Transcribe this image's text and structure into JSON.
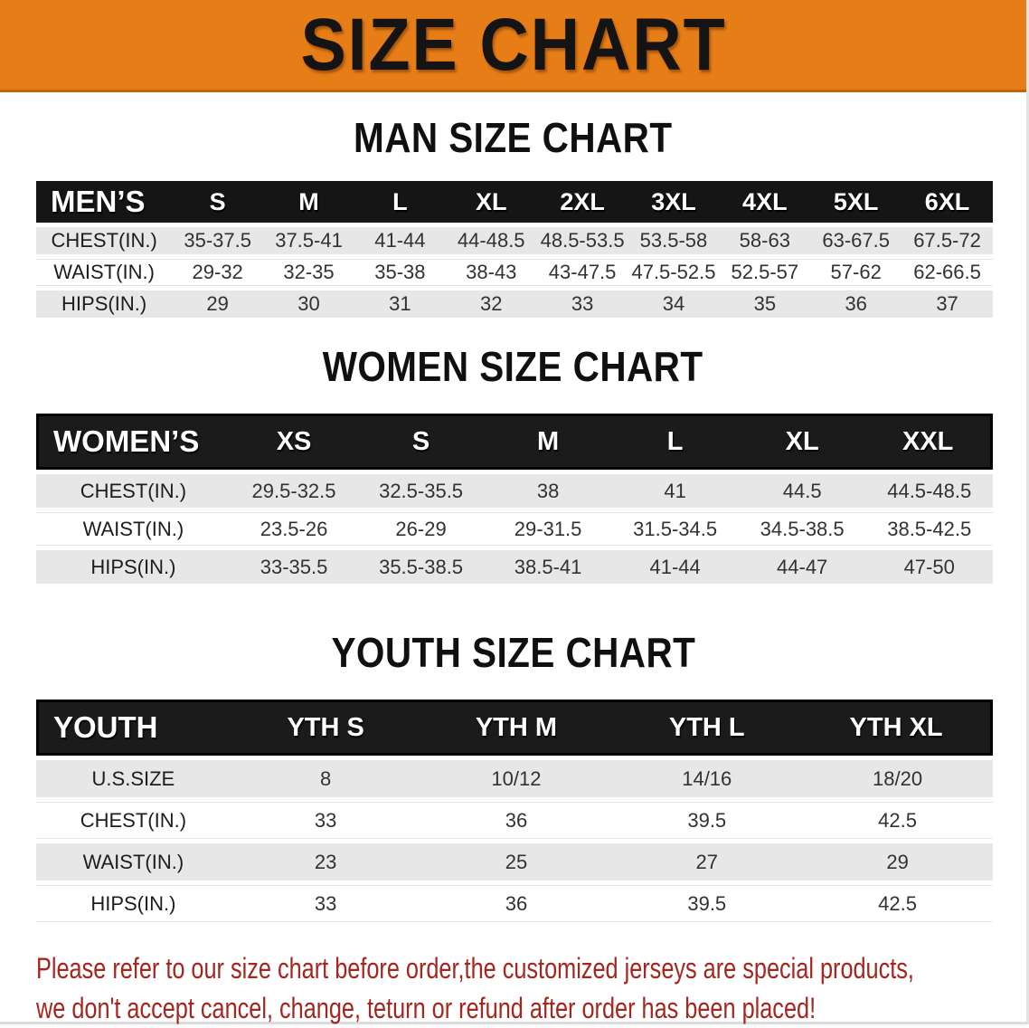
{
  "banner": {
    "title": "SIZE CHART"
  },
  "sections": [
    {
      "title": "MAN SIZE CHART",
      "table": {
        "label": "MEN’S",
        "columns": [
          "S",
          "M",
          "L",
          "XL",
          "2XL",
          "3XL",
          "4XL",
          "5XL",
          "6XL"
        ],
        "rows": [
          {
            "label": "CHEST(IN.)",
            "values": [
              "35-37.5",
              "37.5-41",
              "41-44",
              "44-48.5",
              "48.5-53.5",
              "53.5-58",
              "58-63",
              "63-67.5",
              "67.5-72"
            ]
          },
          {
            "label": "WAIST(IN.)",
            "values": [
              "29-32",
              "32-35",
              "35-38",
              "38-43",
              "43-47.5",
              "47.5-52.5",
              "52.5-57",
              "57-62",
              "62-66.5"
            ]
          },
          {
            "label": "HIPS(IN.)",
            "values": [
              "29",
              "30",
              "31",
              "32",
              "33",
              "34",
              "35",
              "36",
              "37"
            ]
          }
        ]
      }
    },
    {
      "title": "WOMEN SIZE CHART",
      "table": {
        "label": "WOMEN’S",
        "columns": [
          "XS",
          "S",
          "M",
          "L",
          "XL",
          "XXL"
        ],
        "rows": [
          {
            "label": "CHEST(IN.)",
            "values": [
              "29.5-32.5",
              "32.5-35.5",
              "38",
              "41",
              "44.5",
              "44.5-48.5"
            ]
          },
          {
            "label": "WAIST(IN.)",
            "values": [
              "23.5-26",
              "26-29",
              "29-31.5",
              "31.5-34.5",
              "34.5-38.5",
              "38.5-42.5"
            ]
          },
          {
            "label": "HIPS(IN.)",
            "values": [
              "33-35.5",
              "35.5-38.5",
              "38.5-41",
              "41-44",
              "44-47",
              "47-50"
            ]
          }
        ]
      }
    },
    {
      "title": "YOUTH SIZE CHART",
      "table": {
        "label": "YOUTH",
        "columns": [
          "YTH S",
          "YTH M",
          "YTH L",
          "YTH XL"
        ],
        "rows": [
          {
            "label": "U.S.SIZE",
            "values": [
              "8",
              "10/12",
              "14/16",
              "18/20"
            ]
          },
          {
            "label": "CHEST(IN.)",
            "values": [
              "33",
              "36",
              "39.5",
              "42.5"
            ]
          },
          {
            "label": "WAIST(IN.)",
            "values": [
              "23",
              "25",
              "27",
              "29"
            ]
          },
          {
            "label": "HIPS(IN.)",
            "values": [
              "33",
              "36",
              "39.5",
              "42.5"
            ]
          }
        ]
      }
    }
  ],
  "footer": {
    "line1": "Please refer to our size chart before order,the customized jerseys are special products,",
    "line2": "we don't accept cancel, change, teturn or refund after order has been placed!"
  },
  "colors": {
    "banner_orange": "#e67d16",
    "header_black": "#181818",
    "row_gray": "#e7e7e7",
    "note_red": "#a5261e"
  }
}
